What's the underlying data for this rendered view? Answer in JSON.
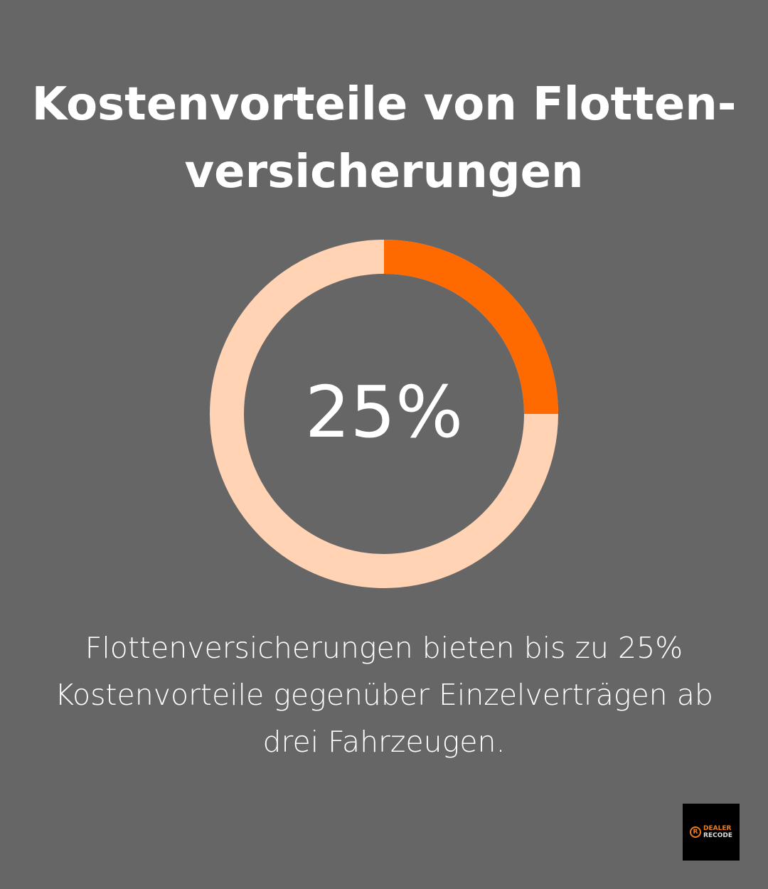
{
  "chart_data": {
    "type": "pie",
    "variant": "donut",
    "title": "Kostenvorteile von Flotten-versicherungen",
    "values": [
      25,
      75
    ],
    "center_label": "25%",
    "colors": {
      "value": "#ff6a00",
      "remainder": "#ffd3b3",
      "background": "#666666"
    },
    "caption": "Flottenversicherungen bieten bis zu 25% Kostenvorteile gegenüber Einzelverträgen ab drei Fahrzeugen."
  },
  "logo": {
    "line1": "DEALER",
    "line2": "RECODE",
    "mark": "R"
  }
}
